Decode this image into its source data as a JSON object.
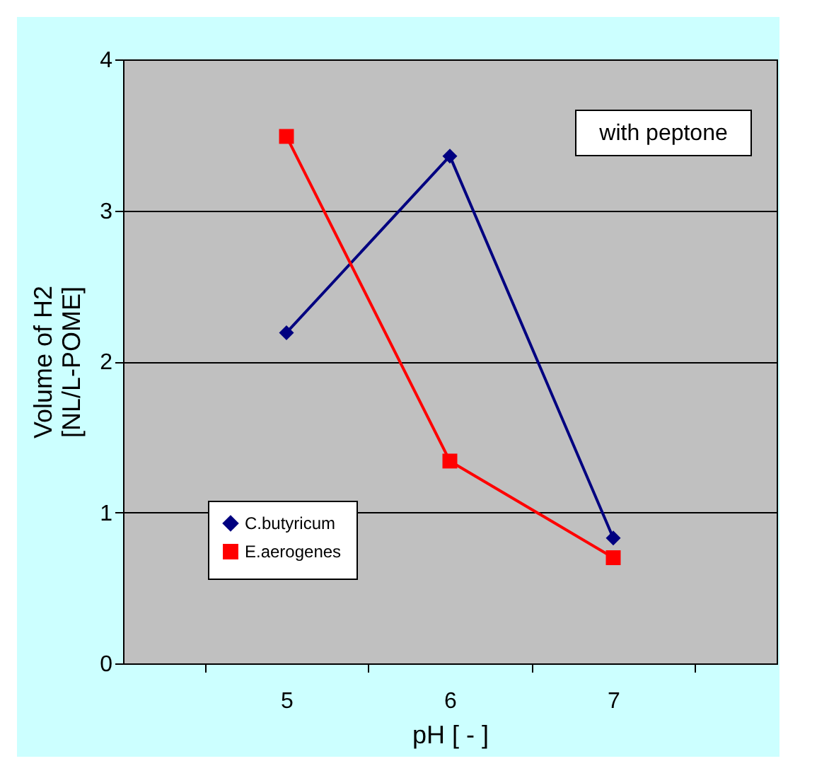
{
  "chart_data": {
    "type": "line",
    "xlabel": "pH [ - ]",
    "ylabel": "Volume of H2\n[NL/L-POME]",
    "categories": [
      "5",
      "6",
      "7"
    ],
    "series": [
      {
        "name": "C.butyricum",
        "color": "#000080",
        "marker": "diamond",
        "values": [
          2.19,
          3.36,
          0.83
        ]
      },
      {
        "name": "E.aerogenes",
        "color": "#ff0000",
        "marker": "square",
        "values": [
          3.49,
          1.34,
          0.7
        ]
      }
    ],
    "ylim": [
      0,
      4
    ],
    "yticks": [
      0,
      1,
      2,
      3,
      4
    ],
    "grid": "y",
    "legend": "bottom left",
    "annotations": [
      "with peptone"
    ]
  }
}
